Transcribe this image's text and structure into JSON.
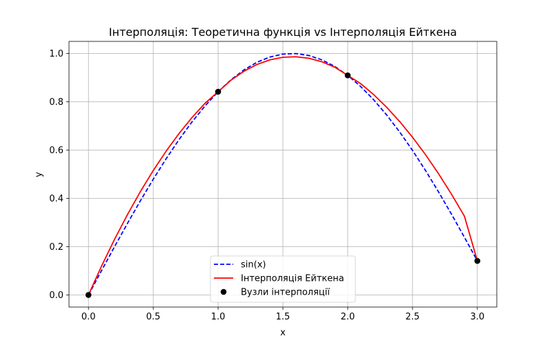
{
  "chart_data": {
    "type": "line",
    "title": "Інтерполяція: Теоретична функція vs Інтерполяція Ейткена",
    "xlabel": "x",
    "ylabel": "y",
    "xlim": [
      -0.15,
      3.15
    ],
    "ylim": [
      -0.05,
      1.05
    ],
    "xticks": [
      0.0,
      0.5,
      1.0,
      1.5,
      2.0,
      2.5,
      3.0
    ],
    "xtick_labels": [
      "0.0",
      "0.5",
      "1.0",
      "1.5",
      "2.0",
      "2.5",
      "3.0"
    ],
    "yticks": [
      0.0,
      0.2,
      0.4,
      0.6,
      0.8,
      1.0
    ],
    "ytick_labels": [
      "0.0",
      "0.2",
      "0.4",
      "0.6",
      "0.8",
      "1.0"
    ],
    "grid": true,
    "legend_position": "lower center",
    "series": [
      {
        "name": "sin(x)",
        "kind": "line",
        "style": "dashed",
        "color": "#0000ff",
        "x": [
          0.0,
          0.1,
          0.2,
          0.3,
          0.4,
          0.5,
          0.6,
          0.7,
          0.8,
          0.9,
          1.0,
          1.1,
          1.2,
          1.3,
          1.4,
          1.5,
          1.6,
          1.7,
          1.8,
          1.9,
          2.0,
          2.1,
          2.2,
          2.3,
          2.4,
          2.5,
          2.6,
          2.7,
          2.8,
          2.9,
          3.0
        ],
        "y": [
          0.0,
          0.0998,
          0.1987,
          0.2955,
          0.3894,
          0.4794,
          0.5646,
          0.6442,
          0.7174,
          0.7833,
          0.8415,
          0.8912,
          0.932,
          0.9636,
          0.9854,
          0.9975,
          0.9996,
          0.9917,
          0.9738,
          0.9463,
          0.9093,
          0.8632,
          0.8085,
          0.7457,
          0.6755,
          0.5985,
          0.5155,
          0.4274,
          0.335,
          0.2392,
          0.1411
        ]
      },
      {
        "name": "Інтерполяція Ейткена",
        "kind": "line",
        "style": "solid",
        "color": "#ff0000",
        "x": [
          0.0,
          0.1,
          0.2,
          0.3,
          0.4,
          0.5,
          0.6,
          0.7,
          0.8,
          0.9,
          1.0,
          1.1,
          1.2,
          1.3,
          1.4,
          1.5,
          1.6,
          1.7,
          1.8,
          1.9,
          2.0,
          2.1,
          2.2,
          2.3,
          2.4,
          2.5,
          2.6,
          2.7,
          2.8,
          2.9,
          3.0
        ],
        "y": [
          0.0,
          0.1183,
          0.2289,
          0.332,
          0.4275,
          0.5155,
          0.5962,
          0.6694,
          0.7354,
          0.7942,
          0.8415,
          0.8898,
          0.9265,
          0.9545,
          0.9736,
          0.9843,
          0.9864,
          0.9802,
          0.9658,
          0.9432,
          0.9093,
          0.875,
          0.8297,
          0.7776,
          0.7186,
          0.6531,
          0.581,
          0.5026,
          0.4177,
          0.3267,
          0.1411
        ]
      },
      {
        "name": "Вузли інтерполяції",
        "kind": "scatter",
        "color": "#000000",
        "x": [
          0.0,
          1.0,
          2.0,
          3.0
        ],
        "y": [
          0.0,
          0.8415,
          0.9093,
          0.1411
        ]
      }
    ]
  }
}
